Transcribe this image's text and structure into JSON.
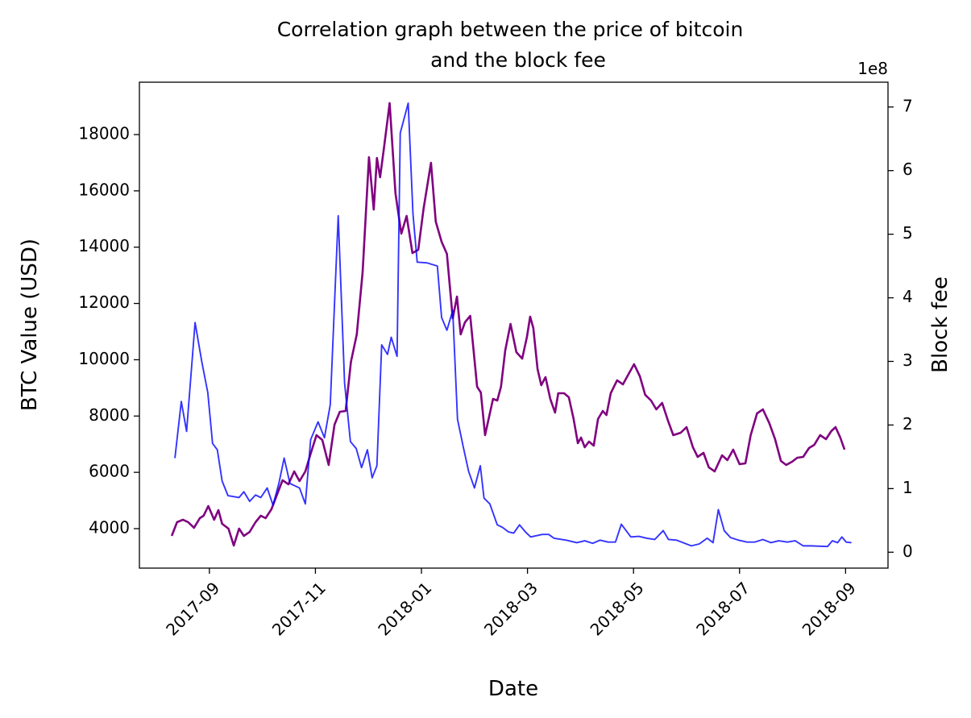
{
  "chart_data": {
    "type": "line",
    "title": [
      "Correlation graph between the price of bitcoin",
      "and the block fee"
    ],
    "xlabel": "Date",
    "ylabel": "BTC Value (USD)",
    "y2label": "Block fee",
    "y2_offset": "1e8",
    "xlim": [
      -1.32,
      12.8
    ],
    "xticks": [
      {
        "value": 0,
        "label": "2017-09"
      },
      {
        "value": 2,
        "label": "2017-11"
      },
      {
        "value": 4,
        "label": "2018-01"
      },
      {
        "value": 6,
        "label": "2018-03"
      },
      {
        "value": 8,
        "label": "2018-05"
      },
      {
        "value": 10,
        "label": "2018-07"
      },
      {
        "value": 12,
        "label": "2018-09"
      }
    ],
    "ylim": [
      2597,
      19861
    ],
    "yticks": [
      4000,
      6000,
      8000,
      10000,
      12000,
      14000,
      16000,
      18000
    ],
    "y2lim": [
      -0.25,
      7.39
    ],
    "y2ticks": [
      0,
      1,
      2,
      3,
      4,
      5,
      6,
      7
    ],
    "series": [
      {
        "color": "#800080",
        "alpha": 1,
        "width": 2.6,
        "x": [
          -0.71,
          -0.61,
          -0.5,
          -0.4,
          -0.29,
          -0.18,
          -0.11,
          -0.02,
          0.09,
          0.17,
          0.24,
          0.36,
          0.46,
          0.56,
          0.65,
          0.76,
          0.87,
          0.97,
          1.06,
          1.17,
          1.28,
          1.38,
          1.49,
          1.6,
          1.7,
          1.81,
          1.91,
          2.02,
          2.13,
          2.25,
          2.36,
          2.46,
          2.57,
          2.67,
          2.78,
          2.89,
          3.01,
          3.1,
          3.16,
          3.22,
          3.3,
          3.4,
          3.51,
          3.62,
          3.72,
          3.83,
          3.94,
          4.04,
          4.18,
          4.27,
          4.38,
          4.48,
          4.59,
          4.67,
          4.74,
          4.82,
          4.92,
          5.05,
          5.12,
          5.2,
          5.35,
          5.43,
          5.5,
          5.58,
          5.68,
          5.79,
          5.9,
          5.99,
          6.05,
          6.11,
          6.19,
          6.26,
          6.34,
          6.43,
          6.52,
          6.58,
          6.69,
          6.78,
          6.87,
          6.95,
          7.01,
          7.08,
          7.16,
          7.25,
          7.33,
          7.42,
          7.49,
          7.57,
          7.69,
          7.8,
          7.9,
          8.01,
          8.12,
          8.22,
          8.33,
          8.43,
          8.54,
          8.65,
          8.75,
          8.89,
          9.0,
          9.12,
          9.21,
          9.32,
          9.42,
          9.53,
          9.67,
          9.77,
          9.88,
          10.0,
          10.11,
          10.21,
          10.33,
          10.44,
          10.56,
          10.67,
          10.78,
          10.88,
          10.99,
          11.09,
          11.2,
          11.31,
          11.41,
          11.52,
          11.63,
          11.73,
          11.81,
          11.9,
          11.98
        ],
        "values": [
          3742,
          4229,
          4315,
          4229,
          4029,
          4372,
          4458,
          4802,
          4315,
          4658,
          4172,
          4000,
          3399,
          4000,
          3742,
          3885,
          4229,
          4458,
          4372,
          4687,
          5231,
          5718,
          5575,
          6033,
          5689,
          6033,
          6663,
          7321,
          7149,
          6262,
          7693,
          8151,
          8180,
          9926,
          10900,
          13104,
          17198,
          15337,
          17170,
          16483,
          17628,
          19117,
          15911,
          14479,
          15108,
          13791,
          13906,
          15366,
          16998,
          14908,
          14192,
          13763,
          11472,
          12245,
          10900,
          11329,
          11558,
          9039,
          8838,
          7321,
          8609,
          8552,
          9039,
          10327,
          11272,
          10270,
          10041,
          10814,
          11530,
          11129,
          9669,
          9096,
          9382,
          8609,
          8123,
          8810,
          8810,
          8667,
          7894,
          7035,
          7235,
          6892,
          7092,
          6949,
          7894,
          8180,
          8037,
          8810,
          9268,
          9125,
          9468,
          9841,
          9411,
          8753,
          8552,
          8237,
          8466,
          7836,
          7321,
          7407,
          7607,
          6892,
          6548,
          6691,
          6176,
          6033,
          6605,
          6434,
          6806,
          6290,
          6319,
          7321,
          8094,
          8237,
          7751,
          7178,
          6405,
          6262,
          6376,
          6519,
          6548,
          6863,
          6978,
          7321,
          7178,
          7464,
          7607,
          7235,
          6806
        ]
      },
      {
        "color": "#0000ff",
        "alpha": 0.8,
        "width": 1.9,
        "axis": "y2",
        "x": [
          -0.65,
          -0.53,
          -0.43,
          -0.27,
          -0.14,
          -0.03,
          0.06,
          0.15,
          0.24,
          0.35,
          0.56,
          0.65,
          0.76,
          0.87,
          0.97,
          1.09,
          1.2,
          1.31,
          1.41,
          1.52,
          1.7,
          1.81,
          1.91,
          2.05,
          2.17,
          2.28,
          2.43,
          2.55,
          2.66,
          2.77,
          2.87,
          2.98,
          3.07,
          3.16,
          3.25,
          3.36,
          3.43,
          3.54,
          3.6,
          3.75,
          3.84,
          3.92,
          4.1,
          4.3,
          4.38,
          4.48,
          4.59,
          4.68,
          4.79,
          4.89,
          5.0,
          5.11,
          5.18,
          5.29,
          5.43,
          5.53,
          5.64,
          5.74,
          5.85,
          5.96,
          6.06,
          6.28,
          6.4,
          6.5,
          6.73,
          6.93,
          7.08,
          7.23,
          7.37,
          7.52,
          7.66,
          7.77,
          7.95,
          8.1,
          8.25,
          8.4,
          8.56,
          8.66,
          8.81,
          9.09,
          9.24,
          9.39,
          9.5,
          9.6,
          9.71,
          9.83,
          9.98,
          10.14,
          10.29,
          10.44,
          10.59,
          10.74,
          10.9,
          11.05,
          11.2,
          11.35,
          11.66,
          11.75,
          11.85,
          11.93,
          12.01,
          12.11
        ],
        "values": [
          1.48,
          2.37,
          1.9,
          3.61,
          2.98,
          2.51,
          1.71,
          1.61,
          1.12,
          0.89,
          0.86,
          0.95,
          0.8,
          0.9,
          0.86,
          1.01,
          0.74,
          1.08,
          1.48,
          1.08,
          1.01,
          0.76,
          1.77,
          2.05,
          1.8,
          2.32,
          5.29,
          2.66,
          1.74,
          1.63,
          1.33,
          1.61,
          1.17,
          1.36,
          3.26,
          3.11,
          3.38,
          3.08,
          6.59,
          7.06,
          5.32,
          4.56,
          4.55,
          4.5,
          3.69,
          3.49,
          3.8,
          2.09,
          1.65,
          1.27,
          1.01,
          1.36,
          0.85,
          0.76,
          0.43,
          0.39,
          0.32,
          0.3,
          0.43,
          0.32,
          0.24,
          0.28,
          0.28,
          0.22,
          0.19,
          0.15,
          0.18,
          0.14,
          0.19,
          0.16,
          0.16,
          0.44,
          0.24,
          0.25,
          0.22,
          0.2,
          0.34,
          0.2,
          0.19,
          0.1,
          0.13,
          0.22,
          0.15,
          0.67,
          0.34,
          0.23,
          0.19,
          0.16,
          0.16,
          0.2,
          0.15,
          0.18,
          0.16,
          0.18,
          0.1,
          0.1,
          0.09,
          0.18,
          0.15,
          0.24,
          0.16,
          0.15
        ]
      }
    ]
  }
}
